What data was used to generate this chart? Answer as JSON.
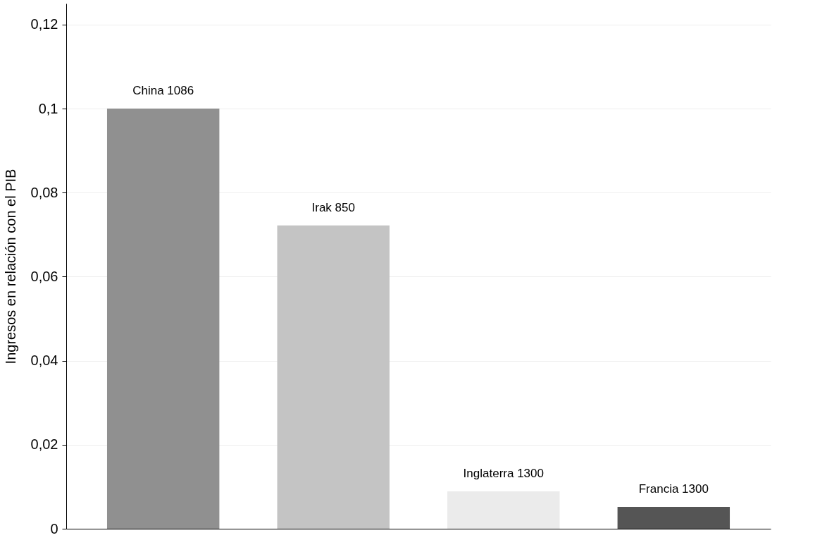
{
  "chart_data": {
    "type": "bar",
    "ylabel": "Ingresos en relación con el PIB",
    "categories": [
      "China 1086",
      "Irak 850",
      "Inglaterra 1300",
      "Francia 1300"
    ],
    "values": [
      0.1,
      0.0722,
      0.0089,
      0.0052
    ],
    "colors": [
      "#909090",
      "#c4c4c4",
      "#ebebeb",
      "#555555"
    ],
    "ylim": [
      0,
      0.125
    ],
    "yticks": [
      0,
      {
        "value": 0.02,
        "label": "0,02"
      },
      {
        "value": 0.04,
        "label": "0,04"
      },
      {
        "value": 0.06,
        "label": "0,06"
      },
      {
        "value": 0.08,
        "label": "0,08"
      },
      {
        "value": 0.1,
        "label": "0,1"
      },
      {
        "value": 0.12,
        "label": "0,12"
      }
    ],
    "grid": "y",
    "tick_labels": "y"
  }
}
